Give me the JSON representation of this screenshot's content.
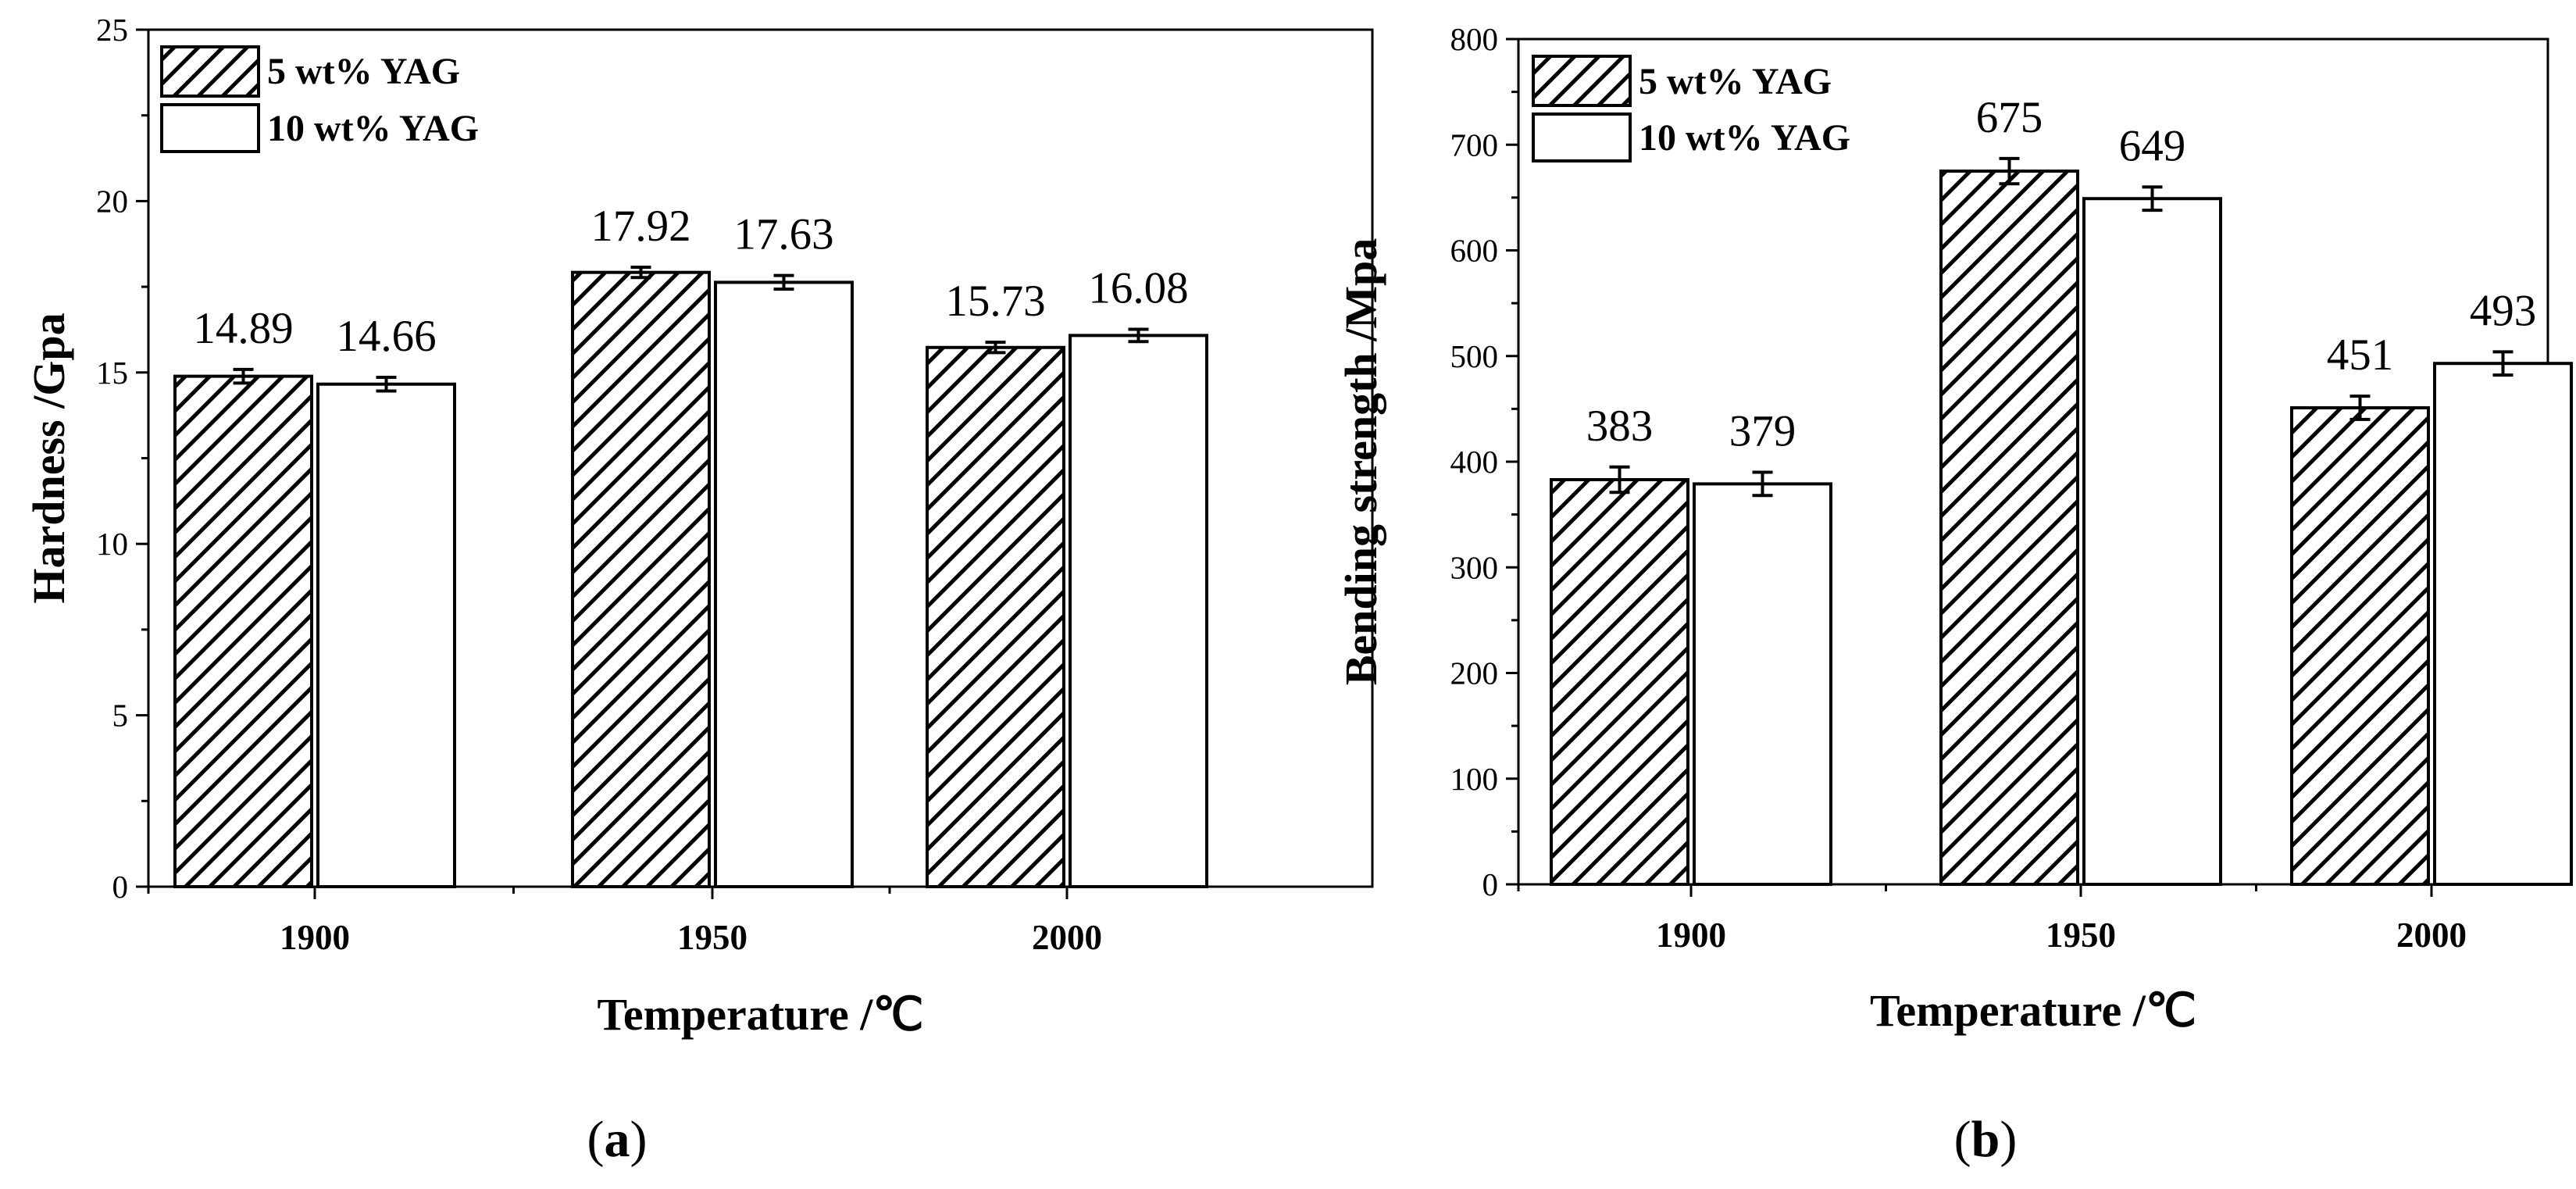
{
  "chart_data": [
    {
      "type": "bar",
      "panel": "(a)",
      "caption_open": "(",
      "caption_letter": "a",
      "caption_close": ")",
      "categories": [
        "1900",
        "1950",
        "2000"
      ],
      "series": [
        {
          "name": "5 wt% YAG",
          "values": [
            14.89,
            17.92,
            15.73
          ],
          "errors": [
            0.2,
            0.15,
            0.15
          ],
          "pattern": "hatch"
        },
        {
          "name": "10 wt% YAG",
          "values": [
            14.66,
            17.63,
            16.08
          ],
          "errors": [
            0.2,
            0.2,
            0.18
          ],
          "pattern": "open"
        }
      ],
      "data_labels": [
        [
          "14.89",
          "17.92",
          "15.73"
        ],
        [
          "14.66",
          "17.63",
          "16.08"
        ]
      ],
      "xlabel": "Temperature /℃",
      "ylabel": "Hardness /Gpa",
      "ylim": [
        0,
        25
      ],
      "yticks": [
        0,
        5,
        10,
        15,
        20,
        25
      ],
      "ytick_labels": [
        "0",
        "5",
        "10",
        "15",
        "20",
        "25"
      ],
      "legend_position": "top-left",
      "grid": false
    },
    {
      "type": "bar",
      "panel": "(b)",
      "caption_open": "(",
      "caption_letter": "b",
      "caption_close": ")",
      "categories": [
        "1900",
        "1950",
        "2000"
      ],
      "series": [
        {
          "name": "5 wt% YAG",
          "values": [
            383,
            675,
            451
          ],
          "errors": [
            12,
            12,
            11
          ],
          "pattern": "hatch"
        },
        {
          "name": "10 wt% YAG",
          "values": [
            379,
            649,
            493
          ],
          "errors": [
            11,
            11,
            11
          ],
          "pattern": "open"
        }
      ],
      "data_labels": [
        [
          "383",
          "675",
          "451"
        ],
        [
          "379",
          "649",
          "493"
        ]
      ],
      "xlabel": "Temperature /℃",
      "ylabel": "Bending strength /Mpa",
      "ylim": [
        0,
        800
      ],
      "yticks": [
        0,
        100,
        200,
        300,
        400,
        500,
        600,
        700,
        800
      ],
      "ytick_labels": [
        "0",
        "100",
        "200",
        "300",
        "400",
        "500",
        "600",
        "700",
        "800"
      ],
      "legend_position": "top-left",
      "grid": false
    }
  ]
}
